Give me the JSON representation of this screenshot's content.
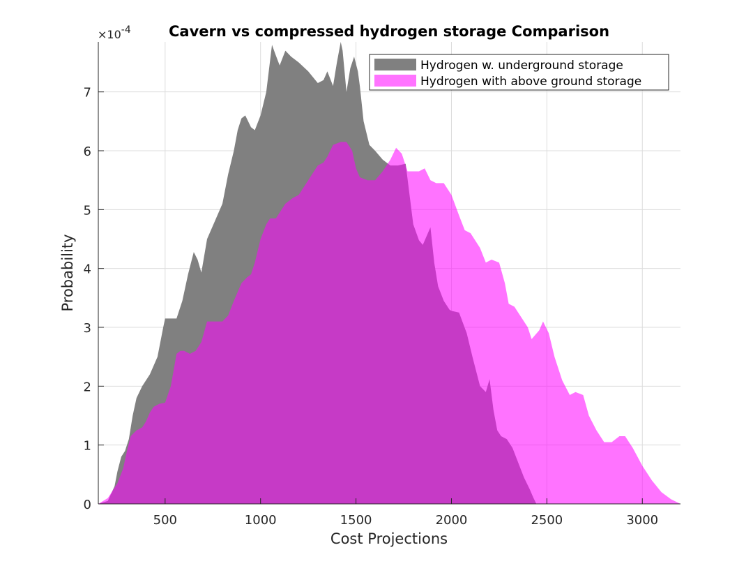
{
  "chart_data": {
    "type": "area",
    "title": "Cavern vs compressed hydrogen storage Comparison",
    "xlabel": "Cost Projections",
    "ylabel": "Probability",
    "y_exponent_label": "×10",
    "y_exponent_power": "-4",
    "xlim": [
      150,
      3200
    ],
    "ylim": [
      0,
      7.85
    ],
    "xticks": [
      500,
      1000,
      1500,
      2000,
      2500,
      3000
    ],
    "yticks": [
      0,
      1,
      2,
      3,
      4,
      5,
      6,
      7
    ],
    "grid": true,
    "legend_position": "top-right",
    "series": [
      {
        "name": "Hydrogen w. underground storage",
        "color": "#808080",
        "opacity": 1.0,
        "x": [
          150,
          200,
          235,
          250,
          270,
          290,
          310,
          330,
          350,
          380,
          420,
          460,
          490,
          500,
          540,
          560,
          590,
          620,
          650,
          670,
          690,
          720,
          760,
          800,
          830,
          860,
          880,
          900,
          920,
          950,
          970,
          1000,
          1030,
          1060,
          1080,
          1100,
          1130,
          1160,
          1200,
          1250,
          1300,
          1330,
          1350,
          1380,
          1400,
          1420,
          1430,
          1450,
          1470,
          1490,
          1510,
          1520,
          1540,
          1570,
          1600,
          1640,
          1680,
          1720,
          1760,
          1800,
          1830,
          1850,
          1870,
          1890,
          1910,
          1930,
          1960,
          1990,
          2000,
          2040,
          2080,
          2110,
          2150,
          2180,
          2200,
          2220,
          2240,
          2260,
          2290,
          2320,
          2350,
          2380,
          2410,
          2430,
          2445
        ],
        "y": [
          0,
          0.05,
          0.3,
          0.55,
          0.8,
          0.9,
          1.1,
          1.5,
          1.8,
          2.0,
          2.2,
          2.5,
          3.0,
          3.15,
          3.15,
          3.15,
          3.45,
          3.9,
          4.28,
          4.15,
          3.93,
          4.5,
          4.8,
          5.1,
          5.6,
          6.0,
          6.35,
          6.55,
          6.6,
          6.4,
          6.35,
          6.6,
          7.0,
          7.8,
          7.62,
          7.45,
          7.7,
          7.6,
          7.5,
          7.35,
          7.15,
          7.2,
          7.35,
          7.1,
          7.5,
          7.85,
          7.7,
          7.0,
          7.4,
          7.6,
          7.35,
          7.1,
          6.5,
          6.1,
          6.0,
          5.85,
          5.75,
          5.75,
          5.78,
          4.75,
          4.48,
          4.4,
          4.55,
          4.7,
          4.1,
          3.7,
          3.45,
          3.3,
          3.28,
          3.25,
          2.9,
          2.5,
          2.0,
          1.9,
          2.12,
          1.6,
          1.25,
          1.15,
          1.1,
          0.95,
          0.7,
          0.45,
          0.25,
          0.1,
          0
        ]
      },
      {
        "name": "Hydrogen with above ground storage",
        "color": "#ff00ff",
        "opacity": 0.55,
        "x": [
          150,
          200,
          250,
          280,
          300,
          320,
          350,
          380,
          400,
          420,
          440,
          470,
          500,
          530,
          560,
          580,
          600,
          630,
          660,
          690,
          720,
          760,
          800,
          830,
          860,
          900,
          930,
          950,
          970,
          1000,
          1030,
          1050,
          1080,
          1100,
          1130,
          1170,
          1200,
          1250,
          1300,
          1330,
          1350,
          1380,
          1420,
          1450,
          1480,
          1500,
          1520,
          1560,
          1600,
          1640,
          1680,
          1710,
          1740,
          1770,
          1800,
          1830,
          1860,
          1890,
          1920,
          1960,
          2000,
          2040,
          2070,
          2100,
          2150,
          2180,
          2210,
          2250,
          2280,
          2300,
          2330,
          2360,
          2400,
          2420,
          2460,
          2480,
          2510,
          2540,
          2580,
          2620,
          2650,
          2690,
          2720,
          2760,
          2800,
          2840,
          2880,
          2910,
          2950,
          3000,
          3050,
          3100,
          3150,
          3200
        ],
        "y": [
          0,
          0.1,
          0.35,
          0.6,
          0.9,
          1.15,
          1.25,
          1.3,
          1.4,
          1.55,
          1.65,
          1.7,
          1.72,
          2.0,
          2.55,
          2.6,
          2.6,
          2.55,
          2.6,
          2.75,
          3.1,
          3.1,
          3.1,
          3.2,
          3.45,
          3.75,
          3.85,
          3.9,
          4.1,
          4.5,
          4.75,
          4.85,
          4.85,
          4.95,
          5.1,
          5.2,
          5.25,
          5.5,
          5.75,
          5.8,
          5.9,
          6.1,
          6.15,
          6.15,
          6.0,
          5.7,
          5.55,
          5.5,
          5.5,
          5.65,
          5.85,
          6.05,
          5.95,
          5.65,
          5.65,
          5.65,
          5.7,
          5.5,
          5.45,
          5.45,
          5.25,
          4.9,
          4.65,
          4.6,
          4.35,
          4.1,
          4.15,
          4.1,
          3.75,
          3.4,
          3.35,
          3.2,
          3.0,
          2.8,
          2.95,
          3.1,
          2.9,
          2.5,
          2.1,
          1.85,
          1.9,
          1.85,
          1.5,
          1.25,
          1.05,
          1.05,
          1.15,
          1.15,
          0.95,
          0.65,
          0.4,
          0.2,
          0.08,
          0
        ]
      }
    ]
  }
}
